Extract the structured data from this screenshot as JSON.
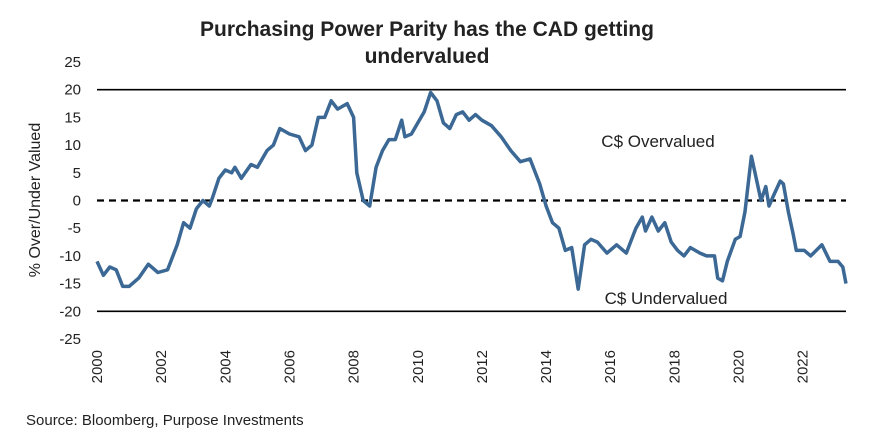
{
  "chart_data": {
    "type": "line",
    "title": [
      "Purchasing Power Parity has the CAD getting",
      "undervalued"
    ],
    "y_label": "% Over/Under Valued",
    "source": "Source: Bloomberg, Purpose Investments",
    "annotations": [
      "C$ Overvalued",
      "C$ Undervalued"
    ],
    "reference_lines": [
      {
        "value": 20,
        "style": "solid"
      },
      {
        "value": 0,
        "style": "dashed"
      },
      {
        "value": -20,
        "style": "solid"
      }
    ],
    "xlim": [
      2000,
      2023.35
    ],
    "ylim": [
      -25,
      25
    ],
    "xticks": [
      2000,
      2002,
      2004,
      2006,
      2008,
      2010,
      2012,
      2014,
      2016,
      2018,
      2020,
      2022
    ],
    "yticks": [
      25,
      20,
      15,
      10,
      5,
      0,
      -5,
      -10,
      -15,
      -20,
      -25
    ],
    "series": [
      {
        "name": "PPP",
        "color": "#3b6894",
        "x": [
          2000.0,
          2000.2,
          2000.4,
          2000.6,
          2000.8,
          2001.0,
          2001.3,
          2001.6,
          2001.9,
          2002.2,
          2002.5,
          2002.7,
          2002.9,
          2003.1,
          2003.3,
          2003.5,
          2003.6,
          2003.8,
          2004.0,
          2004.2,
          2004.3,
          2004.5,
          2004.8,
          2005.0,
          2005.3,
          2005.5,
          2005.7,
          2006.0,
          2006.3,
          2006.5,
          2006.7,
          2006.9,
          2007.1,
          2007.3,
          2007.5,
          2007.8,
          2008.0,
          2008.1,
          2008.3,
          2008.5,
          2008.7,
          2008.9,
          2009.1,
          2009.3,
          2009.5,
          2009.6,
          2009.8,
          2010.0,
          2010.2,
          2010.4,
          2010.6,
          2010.8,
          2011.0,
          2011.2,
          2011.4,
          2011.6,
          2011.8,
          2012.0,
          2012.3,
          2012.6,
          2012.9,
          2013.2,
          2013.5,
          2013.8,
          2014.0,
          2014.2,
          2014.4,
          2014.6,
          2014.8,
          2015.0,
          2015.2,
          2015.4,
          2015.6,
          2015.9,
          2016.2,
          2016.5,
          2016.8,
          2017.0,
          2017.1,
          2017.3,
          2017.5,
          2017.7,
          2017.9,
          2018.1,
          2018.3,
          2018.5,
          2018.8,
          2019.0,
          2019.25,
          2019.35,
          2019.5,
          2019.65,
          2019.9,
          2020.05,
          2020.2,
          2020.4,
          2020.55,
          2020.7,
          2020.85,
          2020.95,
          2021.1,
          2021.3,
          2021.4,
          2021.55,
          2021.7,
          2021.8,
          2022.05,
          2022.25,
          2022.6,
          2022.85,
          2023.1,
          2023.25,
          2023.35
        ],
        "values": [
          -11,
          -13.5,
          -12,
          -12.5,
          -15.5,
          -15.5,
          -14,
          -11.5,
          -13,
          -12.5,
          -8,
          -4,
          -5,
          -1.5,
          0,
          -1,
          0.5,
          4,
          5.5,
          5,
          6,
          4,
          6.5,
          6,
          9,
          10,
          13,
          12,
          11.5,
          9,
          10,
          15,
          15,
          18,
          16.5,
          17.5,
          15,
          5,
          0,
          -1,
          6,
          9,
          11,
          11,
          14.5,
          11.5,
          12,
          14,
          16,
          19.5,
          18,
          14,
          13,
          15.5,
          16,
          14.5,
          15.5,
          14.5,
          13.5,
          11.5,
          9,
          7,
          7.5,
          3,
          -1,
          -4,
          -5,
          -9,
          -8.5,
          -16,
          -8,
          -7,
          -7.5,
          -9.5,
          -8,
          -9.5,
          -5,
          -3,
          -5.5,
          -3,
          -5.5,
          -4,
          -7.5,
          -9,
          -10,
          -8.5,
          -9.5,
          -10,
          -10,
          -14,
          -14.5,
          -11,
          -7,
          -6.5,
          -2,
          8,
          4,
          0,
          2.5,
          -1,
          1,
          3.5,
          3,
          -2,
          -6,
          -9,
          -9,
          -10,
          -8,
          -11,
          -11,
          -12,
          -15
        ]
      }
    ]
  }
}
